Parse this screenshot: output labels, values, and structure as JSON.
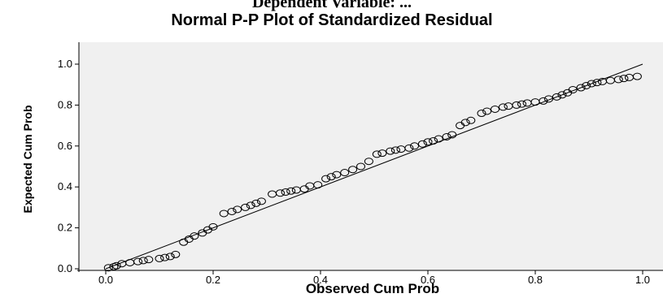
{
  "cut_title": "Dependent Variable: ...",
  "chart_data": {
    "type": "scatter",
    "title": "Normal P-P Plot of Standardized Residual",
    "xlabel": "Observed Cum Prob",
    "ylabel": "Expected Cum Prob",
    "xlim": [
      0.0,
      1.0
    ],
    "ylim": [
      0.0,
      1.0
    ],
    "xticks": [
      "0.0",
      "0.2",
      "0.4",
      "0.6",
      "0.8",
      "1.0"
    ],
    "yticks": [
      "0.0",
      "0.2",
      "0.4",
      "0.6",
      "0.8",
      "1.0"
    ],
    "grid": false,
    "plot_background": "#f0f0f0",
    "marker": "open-circle",
    "reference_line": {
      "from": [
        0,
        0
      ],
      "to": [
        1,
        1
      ]
    },
    "series": [
      {
        "x": [
          0.005,
          0.015,
          0.02,
          0.03,
          0.045,
          0.06,
          0.07,
          0.08,
          0.1,
          0.11,
          0.12,
          0.13,
          0.145,
          0.155,
          0.165,
          0.18,
          0.19,
          0.2,
          0.22,
          0.235,
          0.245,
          0.26,
          0.27,
          0.28,
          0.29,
          0.31,
          0.325,
          0.335,
          0.345,
          0.355,
          0.37,
          0.38,
          0.395,
          0.41,
          0.42,
          0.43,
          0.445,
          0.46,
          0.475,
          0.49,
          0.505,
          0.515,
          0.53,
          0.54,
          0.55,
          0.565,
          0.575,
          0.59,
          0.6,
          0.61,
          0.62,
          0.635,
          0.645,
          0.66,
          0.67,
          0.68,
          0.7,
          0.71,
          0.725,
          0.74,
          0.75,
          0.765,
          0.775,
          0.785,
          0.8,
          0.815,
          0.825,
          0.84,
          0.85,
          0.86,
          0.87,
          0.885,
          0.895,
          0.905,
          0.915,
          0.925,
          0.94,
          0.955,
          0.965,
          0.975,
          0.99
        ],
        "y": [
          0.005,
          0.01,
          0.015,
          0.025,
          0.03,
          0.035,
          0.04,
          0.045,
          0.05,
          0.055,
          0.06,
          0.07,
          0.13,
          0.145,
          0.16,
          0.175,
          0.19,
          0.205,
          0.27,
          0.28,
          0.29,
          0.3,
          0.31,
          0.32,
          0.33,
          0.365,
          0.37,
          0.375,
          0.38,
          0.385,
          0.39,
          0.405,
          0.41,
          0.44,
          0.45,
          0.46,
          0.47,
          0.485,
          0.5,
          0.525,
          0.56,
          0.565,
          0.575,
          0.58,
          0.585,
          0.59,
          0.6,
          0.61,
          0.62,
          0.625,
          0.635,
          0.645,
          0.655,
          0.7,
          0.715,
          0.725,
          0.76,
          0.77,
          0.78,
          0.79,
          0.795,
          0.8,
          0.805,
          0.81,
          0.815,
          0.82,
          0.83,
          0.84,
          0.85,
          0.86,
          0.875,
          0.885,
          0.895,
          0.905,
          0.91,
          0.915,
          0.92,
          0.925,
          0.93,
          0.935,
          0.94
        ]
      }
    ]
  }
}
